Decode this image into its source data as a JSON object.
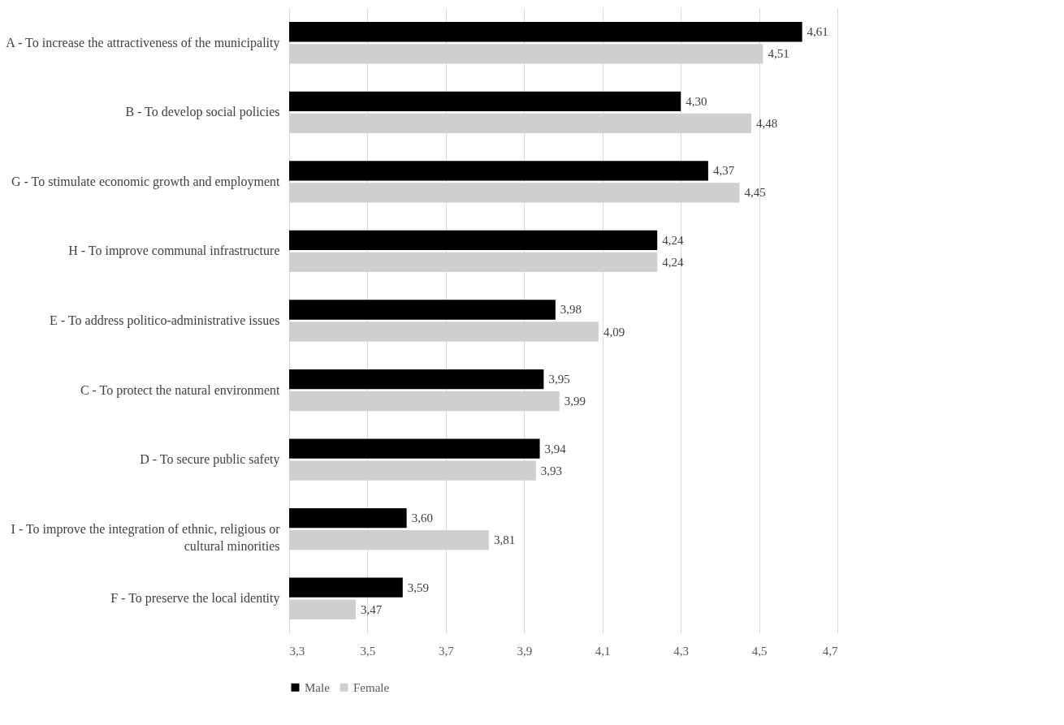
{
  "chart_data": {
    "type": "bar",
    "orientation": "horizontal",
    "categories": [
      "A - To increase the attractiveness of the municipality",
      "B - To develop social policies",
      "G - To stimulate  economic growth and employment",
      "H - To improve communal infrastructure",
      "E - To address politico-administrative issues",
      "C - To protect the natural environment",
      "D - To secure public safety",
      "I - To improve the integration of ethnic, religious or cultural minorities",
      "F - To preserve the local identity"
    ],
    "series": [
      {
        "name": "Male",
        "color": "#000000",
        "values": [
          4.61,
          4.3,
          4.37,
          4.24,
          3.98,
          3.95,
          3.94,
          3.6,
          3.59
        ],
        "value_labels": [
          "4,61",
          "4,30",
          "4,37",
          "4,24",
          "3,98",
          "3,95",
          "3,94",
          "3,60",
          "3,59"
        ]
      },
      {
        "name": "Female",
        "color": "#d0cece",
        "values": [
          4.51,
          4.48,
          4.45,
          4.24,
          4.09,
          3.99,
          3.93,
          3.81,
          3.47
        ],
        "value_labels": [
          "4,51",
          "4,48",
          "4,45",
          "4,24",
          "4,09",
          "3,99",
          "3,93",
          "3,81",
          "3,47"
        ]
      }
    ],
    "xlim": [
      3.3,
      4.7
    ],
    "xticks": [
      {
        "value": 3.3,
        "label": "3,3"
      },
      {
        "value": 3.5,
        "label": "3,5"
      },
      {
        "value": 3.7,
        "label": "3,7"
      },
      {
        "value": 3.9,
        "label": "3,9"
      },
      {
        "value": 4.1,
        "label": "4,1"
      },
      {
        "value": 4.3,
        "label": "4,3"
      },
      {
        "value": 4.5,
        "label": "4,5"
      },
      {
        "value": 4.7,
        "label": "4,7"
      }
    ],
    "grid": "x",
    "legend": "bottom"
  }
}
